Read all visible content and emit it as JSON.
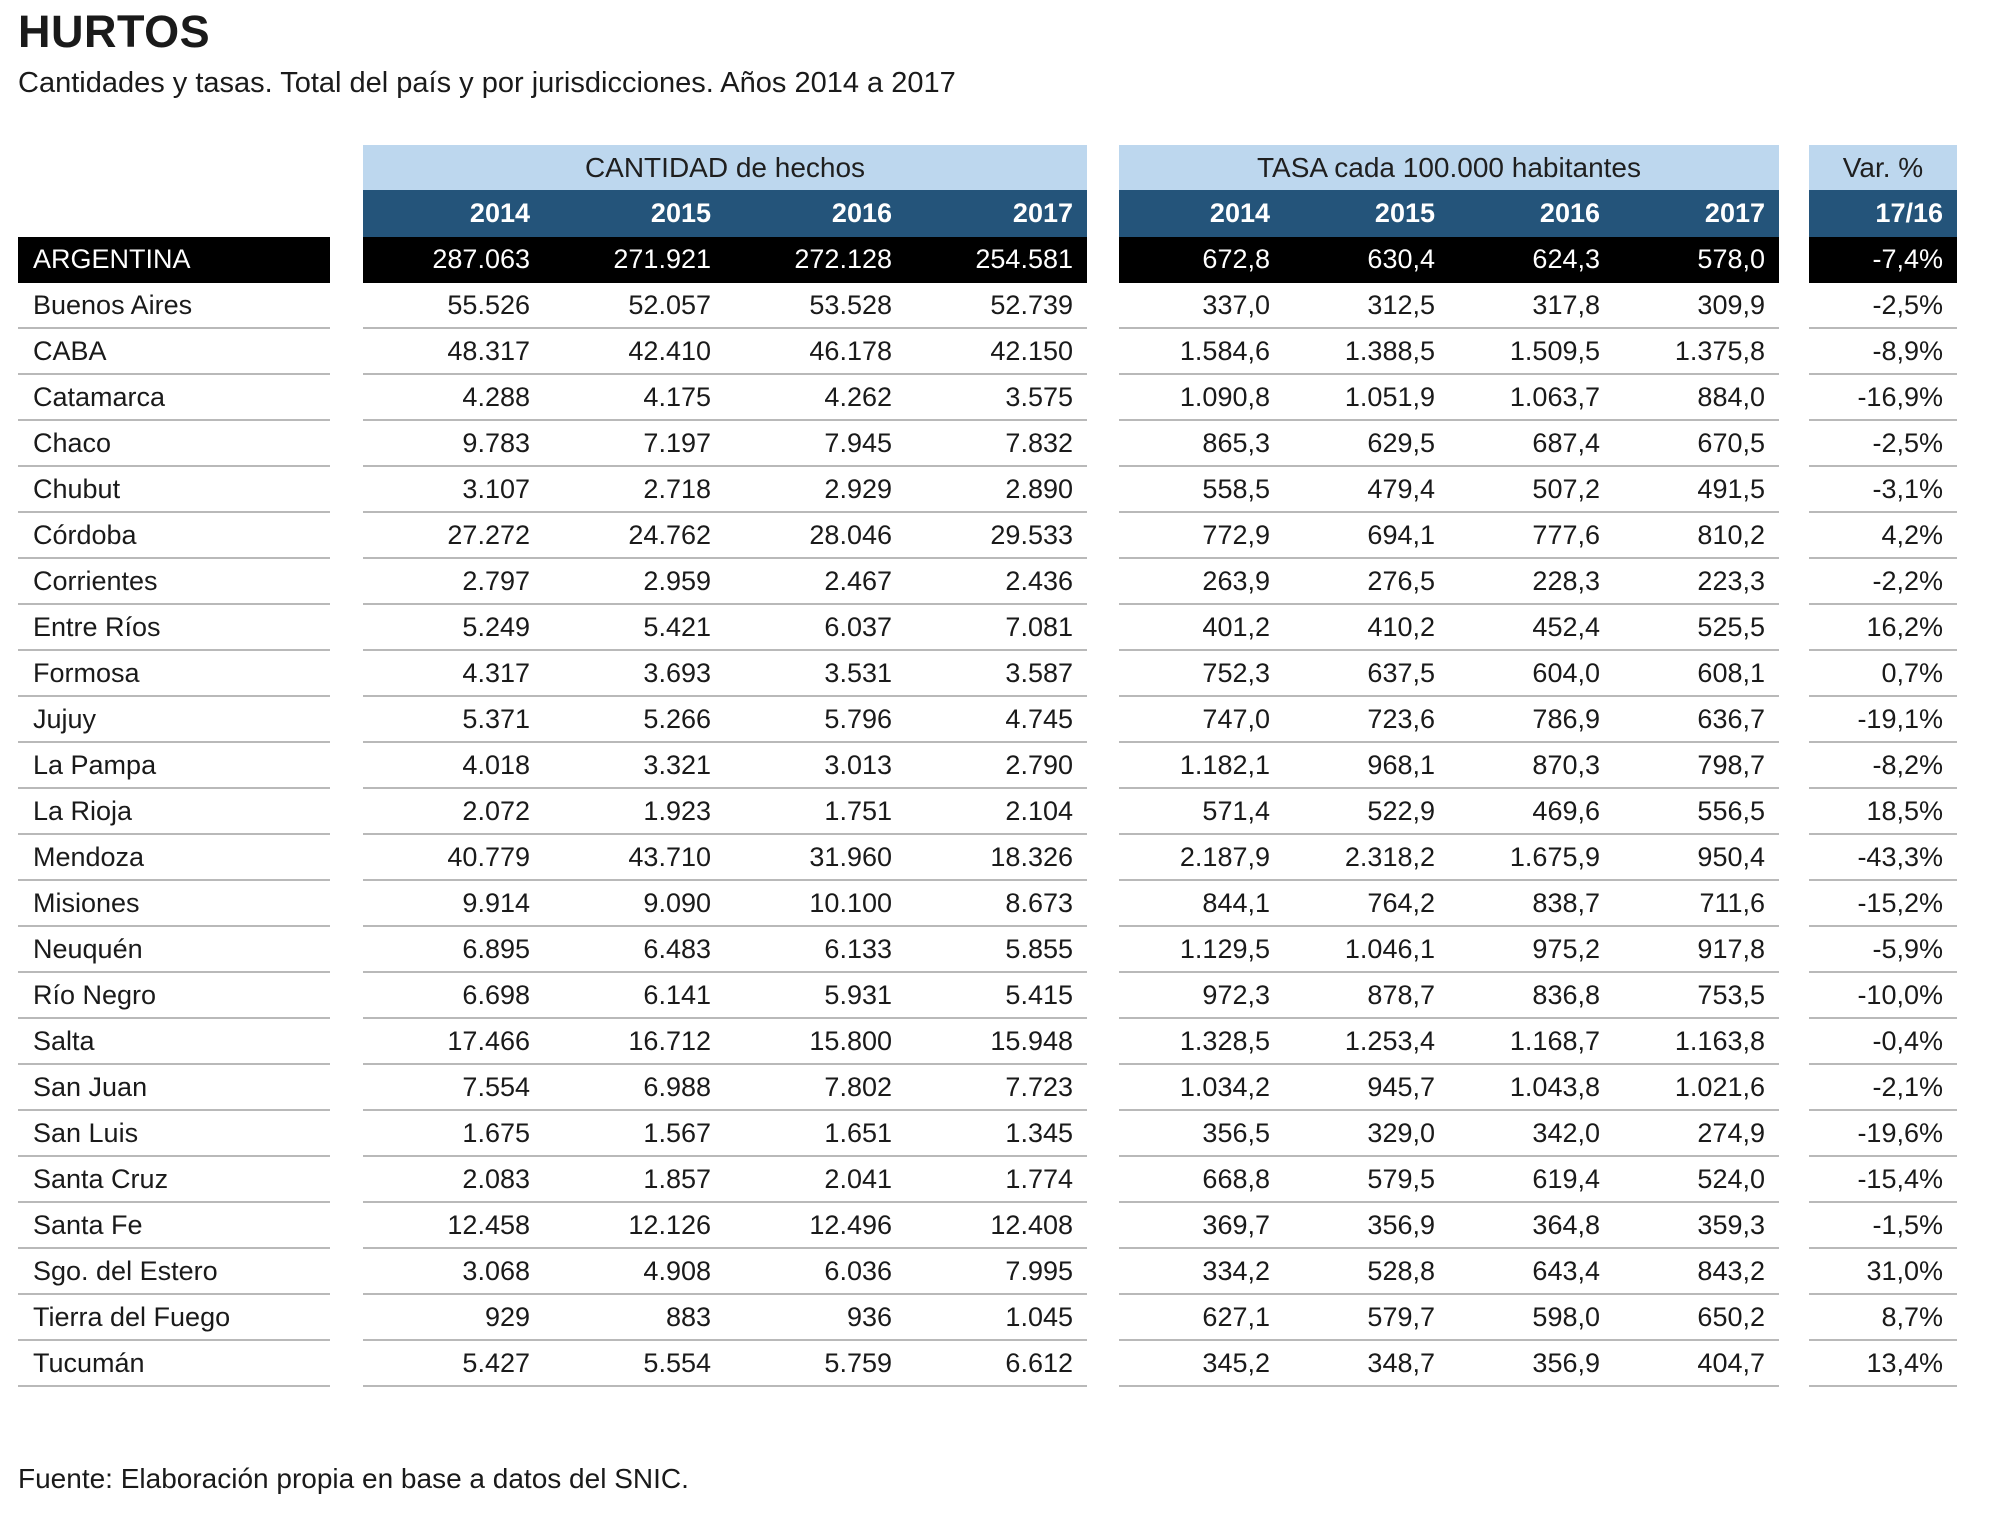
{
  "title": "HURTOS",
  "subtitle": "Cantidades y tasas. Total del país y por jurisdicciones. Años 2014 a 2017",
  "source_note": "Fuente: Elaboración propia en base a datos del SNIC.",
  "colors": {
    "group_header_bg": "#BDD7EE",
    "year_header_bg": "#24547A",
    "total_row_bg": "#000000",
    "separator": "#B9B9B9"
  },
  "table": {
    "group_cantidad": {
      "label": "CANTIDAD de hechos",
      "years": [
        "2014",
        "2015",
        "2016",
        "2017"
      ]
    },
    "group_tasa": {
      "label": "TASA cada 100.000 habitantes",
      "years": [
        "2014",
        "2015",
        "2016",
        "2017"
      ]
    },
    "group_var": {
      "label": "Var. %",
      "period": "17/16"
    },
    "rows": [
      {
        "label": "ARGENTINA",
        "highlight": true,
        "cantidad": [
          "287.063",
          "271.921",
          "272.128",
          "254.581"
        ],
        "tasa": [
          "672,8",
          "630,4",
          "624,3",
          "578,0"
        ],
        "var": "-7,4%"
      },
      {
        "label": "Buenos Aires",
        "cantidad": [
          "55.526",
          "52.057",
          "53.528",
          "52.739"
        ],
        "tasa": [
          "337,0",
          "312,5",
          "317,8",
          "309,9"
        ],
        "var": "-2,5%"
      },
      {
        "label": "CABA",
        "cantidad": [
          "48.317",
          "42.410",
          "46.178",
          "42.150"
        ],
        "tasa": [
          "1.584,6",
          "1.388,5",
          "1.509,5",
          "1.375,8"
        ],
        "var": "-8,9%"
      },
      {
        "label": "Catamarca",
        "cantidad": [
          "4.288",
          "4.175",
          "4.262",
          "3.575"
        ],
        "tasa": [
          "1.090,8",
          "1.051,9",
          "1.063,7",
          "884,0"
        ],
        "var": "-16,9%"
      },
      {
        "label": "Chaco",
        "cantidad": [
          "9.783",
          "7.197",
          "7.945",
          "7.832"
        ],
        "tasa": [
          "865,3",
          "629,5",
          "687,4",
          "670,5"
        ],
        "var": "-2,5%"
      },
      {
        "label": "Chubut",
        "cantidad": [
          "3.107",
          "2.718",
          "2.929",
          "2.890"
        ],
        "tasa": [
          "558,5",
          "479,4",
          "507,2",
          "491,5"
        ],
        "var": "-3,1%"
      },
      {
        "label": "Córdoba",
        "cantidad": [
          "27.272",
          "24.762",
          "28.046",
          "29.533"
        ],
        "tasa": [
          "772,9",
          "694,1",
          "777,6",
          "810,2"
        ],
        "var": "4,2%"
      },
      {
        "label": "Corrientes",
        "cantidad": [
          "2.797",
          "2.959",
          "2.467",
          "2.436"
        ],
        "tasa": [
          "263,9",
          "276,5",
          "228,3",
          "223,3"
        ],
        "var": "-2,2%"
      },
      {
        "label": "Entre Ríos",
        "cantidad": [
          "5.249",
          "5.421",
          "6.037",
          "7.081"
        ],
        "tasa": [
          "401,2",
          "410,2",
          "452,4",
          "525,5"
        ],
        "var": "16,2%"
      },
      {
        "label": "Formosa",
        "cantidad": [
          "4.317",
          "3.693",
          "3.531",
          "3.587"
        ],
        "tasa": [
          "752,3",
          "637,5",
          "604,0",
          "608,1"
        ],
        "var": "0,7%"
      },
      {
        "label": "Jujuy",
        "cantidad": [
          "5.371",
          "5.266",
          "5.796",
          "4.745"
        ],
        "tasa": [
          "747,0",
          "723,6",
          "786,9",
          "636,7"
        ],
        "var": "-19,1%"
      },
      {
        "label": "La Pampa",
        "cantidad": [
          "4.018",
          "3.321",
          "3.013",
          "2.790"
        ],
        "tasa": [
          "1.182,1",
          "968,1",
          "870,3",
          "798,7"
        ],
        "var": "-8,2%"
      },
      {
        "label": "La Rioja",
        "cantidad": [
          "2.072",
          "1.923",
          "1.751",
          "2.104"
        ],
        "tasa": [
          "571,4",
          "522,9",
          "469,6",
          "556,5"
        ],
        "var": "18,5%"
      },
      {
        "label": "Mendoza",
        "cantidad": [
          "40.779",
          "43.710",
          "31.960",
          "18.326"
        ],
        "tasa": [
          "2.187,9",
          "2.318,2",
          "1.675,9",
          "950,4"
        ],
        "var": "-43,3%"
      },
      {
        "label": "Misiones",
        "cantidad": [
          "9.914",
          "9.090",
          "10.100",
          "8.673"
        ],
        "tasa": [
          "844,1",
          "764,2",
          "838,7",
          "711,6"
        ],
        "var": "-15,2%"
      },
      {
        "label": "Neuquén",
        "cantidad": [
          "6.895",
          "6.483",
          "6.133",
          "5.855"
        ],
        "tasa": [
          "1.129,5",
          "1.046,1",
          "975,2",
          "917,8"
        ],
        "var": "-5,9%"
      },
      {
        "label": "Río Negro",
        "cantidad": [
          "6.698",
          "6.141",
          "5.931",
          "5.415"
        ],
        "tasa": [
          "972,3",
          "878,7",
          "836,8",
          "753,5"
        ],
        "var": "-10,0%"
      },
      {
        "label": "Salta",
        "cantidad": [
          "17.466",
          "16.712",
          "15.800",
          "15.948"
        ],
        "tasa": [
          "1.328,5",
          "1.253,4",
          "1.168,7",
          "1.163,8"
        ],
        "var": "-0,4%"
      },
      {
        "label": "San Juan",
        "cantidad": [
          "7.554",
          "6.988",
          "7.802",
          "7.723"
        ],
        "tasa": [
          "1.034,2",
          "945,7",
          "1.043,8",
          "1.021,6"
        ],
        "var": "-2,1%"
      },
      {
        "label": "San Luis",
        "cantidad": [
          "1.675",
          "1.567",
          "1.651",
          "1.345"
        ],
        "tasa": [
          "356,5",
          "329,0",
          "342,0",
          "274,9"
        ],
        "var": "-19,6%"
      },
      {
        "label": "Santa Cruz",
        "cantidad": [
          "2.083",
          "1.857",
          "2.041",
          "1.774"
        ],
        "tasa": [
          "668,8",
          "579,5",
          "619,4",
          "524,0"
        ],
        "var": "-15,4%"
      },
      {
        "label": "Santa Fe",
        "cantidad": [
          "12.458",
          "12.126",
          "12.496",
          "12.408"
        ],
        "tasa": [
          "369,7",
          "356,9",
          "364,8",
          "359,3"
        ],
        "var": "-1,5%"
      },
      {
        "label": "Sgo. del Estero",
        "cantidad": [
          "3.068",
          "4.908",
          "6.036",
          "7.995"
        ],
        "tasa": [
          "334,2",
          "528,8",
          "643,4",
          "843,2"
        ],
        "var": "31,0%"
      },
      {
        "label": "Tierra del Fuego",
        "cantidad": [
          "929",
          "883",
          "936",
          "1.045"
        ],
        "tasa": [
          "627,1",
          "579,7",
          "598,0",
          "650,2"
        ],
        "var": "8,7%"
      },
      {
        "label": "Tucumán",
        "cantidad": [
          "5.427",
          "5.554",
          "5.759",
          "6.612"
        ],
        "tasa": [
          "345,2",
          "348,7",
          "356,9",
          "404,7"
        ],
        "var": "13,4%"
      }
    ]
  }
}
